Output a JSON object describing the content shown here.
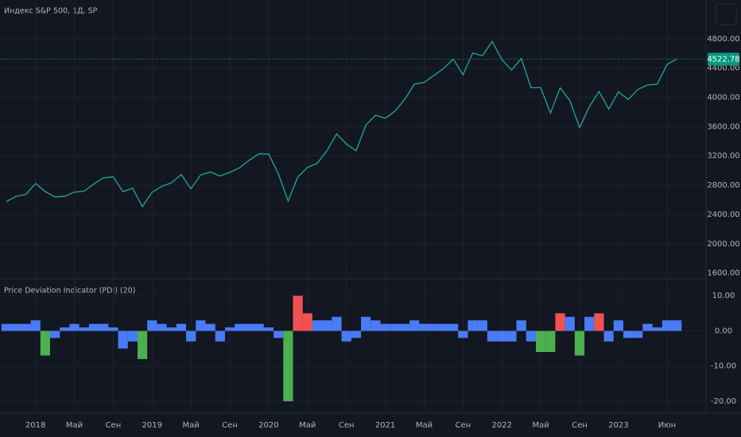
{
  "chart_data": [
    {
      "type": "line",
      "title": "Индекс S&P 500, 1Д, SP",
      "color": "#26a69a",
      "x": [
        "2017-10",
        "2017-11",
        "2017-12",
        "2018-01",
        "2018-02",
        "2018-03",
        "2018-04",
        "2018-05",
        "2018-06",
        "2018-07",
        "2018-08",
        "2018-09",
        "2018-10",
        "2018-11",
        "2018-12",
        "2019-01",
        "2019-02",
        "2019-03",
        "2019-04",
        "2019-05",
        "2019-06",
        "2019-07",
        "2019-08",
        "2019-09",
        "2019-10",
        "2019-11",
        "2019-12",
        "2020-01",
        "2020-02",
        "2020-03",
        "2020-04",
        "2020-05",
        "2020-06",
        "2020-07",
        "2020-08",
        "2020-09",
        "2020-10",
        "2020-11",
        "2020-12",
        "2021-01",
        "2021-02",
        "2021-03",
        "2021-04",
        "2021-05",
        "2021-06",
        "2021-07",
        "2021-08",
        "2021-09",
        "2021-10",
        "2021-11",
        "2021-12",
        "2022-01",
        "2022-02",
        "2022-03",
        "2022-04",
        "2022-05",
        "2022-06",
        "2022-07",
        "2022-08",
        "2022-09",
        "2022-10",
        "2022-11",
        "2022-12",
        "2023-01",
        "2023-02",
        "2023-03",
        "2023-04",
        "2023-05",
        "2023-06",
        "2023-07"
      ],
      "values": [
        2575,
        2647,
        2673,
        2823,
        2713,
        2640,
        2648,
        2705,
        2718,
        2816,
        2901,
        2913,
        2711,
        2760,
        2506,
        2704,
        2784,
        2834,
        2945,
        2752,
        2941,
        2980,
        2926,
        2976,
        3037,
        3141,
        3230,
        3225,
        2954,
        2584,
        2912,
        3044,
        3100,
        3271,
        3500,
        3363,
        3270,
        3622,
        3756,
        3714,
        3811,
        3973,
        4181,
        4204,
        4298,
        4395,
        4523,
        4308,
        4605,
        4567,
        4766,
        4516,
        4374,
        4530,
        4132,
        4132,
        3785,
        4130,
        3955,
        3586,
        3872,
        4080,
        3840,
        4077,
        3970,
        4109,
        4169,
        4180,
        4450,
        4522.78
      ],
      "last_value": 4522.78,
      "last_color": "#089981",
      "ylim": [
        1520,
        5330
      ],
      "yticks": [
        {
          "value": 1600,
          "label": "1600.00"
        },
        {
          "value": 2000,
          "label": "2000.00"
        },
        {
          "value": 2400,
          "label": "2400.00"
        },
        {
          "value": 2800,
          "label": "2800.00"
        },
        {
          "value": 3200,
          "label": "3200.00"
        },
        {
          "value": 3600,
          "label": "3600.00"
        },
        {
          "value": 4000,
          "label": "4000.00"
        },
        {
          "value": 4400,
          "label": "4400.00"
        },
        {
          "value": 4800,
          "label": "4800.00"
        }
      ],
      "grid": true
    },
    {
      "type": "bar",
      "title": "Price Deviation Indicator (PDI) (20)",
      "x": [
        "2017-10",
        "2017-11",
        "2017-12",
        "2018-01",
        "2018-02",
        "2018-03",
        "2018-04",
        "2018-05",
        "2018-06",
        "2018-07",
        "2018-08",
        "2018-09",
        "2018-10",
        "2018-11",
        "2018-12",
        "2019-01",
        "2019-02",
        "2019-03",
        "2019-04",
        "2019-05",
        "2019-06",
        "2019-07",
        "2019-08",
        "2019-09",
        "2019-10",
        "2019-11",
        "2019-12",
        "2020-01",
        "2020-02",
        "2020-03",
        "2020-04",
        "2020-05",
        "2020-06",
        "2020-07",
        "2020-08",
        "2020-09",
        "2020-10",
        "2020-11",
        "2020-12",
        "2021-01",
        "2021-02",
        "2021-03",
        "2021-04",
        "2021-05",
        "2021-06",
        "2021-07",
        "2021-08",
        "2021-09",
        "2021-10",
        "2021-11",
        "2021-12",
        "2022-01",
        "2022-02",
        "2022-03",
        "2022-04",
        "2022-05",
        "2022-06",
        "2022-07",
        "2022-08",
        "2022-09",
        "2022-10",
        "2022-11",
        "2022-12",
        "2023-01",
        "2023-02",
        "2023-03",
        "2023-04",
        "2023-05",
        "2023-06",
        "2023-07"
      ],
      "values": [
        2,
        2,
        2,
        3,
        -7,
        -2,
        1,
        2,
        1,
        2,
        2,
        1,
        -5,
        -3,
        -8,
        3,
        2,
        1,
        2,
        -3,
        3,
        2,
        -3,
        1,
        2,
        2,
        2,
        1,
        -2,
        -20,
        10,
        5,
        3,
        3,
        4,
        -3,
        -2,
        4,
        3,
        2,
        2,
        2,
        3,
        2,
        2,
        2,
        2,
        -2,
        3,
        3,
        -3,
        -3,
        -3,
        3,
        -3,
        -6,
        -6,
        5,
        4,
        -7,
        4,
        5,
        -3,
        3,
        -2,
        -2,
        2,
        1,
        3,
        3
      ],
      "colors": [
        "#4a7bf7",
        "#4a7bf7",
        "#4a7bf7",
        "#4a7bf7",
        "#4caf50",
        "#4a7bf7",
        "#4a7bf7",
        "#4a7bf7",
        "#4a7bf7",
        "#4a7bf7",
        "#4a7bf7",
        "#4a7bf7",
        "#4a7bf7",
        "#4a7bf7",
        "#4caf50",
        "#4a7bf7",
        "#4a7bf7",
        "#4a7bf7",
        "#4a7bf7",
        "#4a7bf7",
        "#4a7bf7",
        "#4a7bf7",
        "#4a7bf7",
        "#4a7bf7",
        "#4a7bf7",
        "#4a7bf7",
        "#4a7bf7",
        "#4a7bf7",
        "#4a7bf7",
        "#4caf50",
        "#f05252",
        "#f05252",
        "#4a7bf7",
        "#4a7bf7",
        "#4a7bf7",
        "#4a7bf7",
        "#4a7bf7",
        "#4a7bf7",
        "#4a7bf7",
        "#4a7bf7",
        "#4a7bf7",
        "#4a7bf7",
        "#4a7bf7",
        "#4a7bf7",
        "#4a7bf7",
        "#4a7bf7",
        "#4a7bf7",
        "#4a7bf7",
        "#4a7bf7",
        "#4a7bf7",
        "#4a7bf7",
        "#4a7bf7",
        "#4a7bf7",
        "#4a7bf7",
        "#4a7bf7",
        "#4caf50",
        "#4caf50",
        "#f05252",
        "#4a7bf7",
        "#4caf50",
        "#4a7bf7",
        "#f05252",
        "#4a7bf7",
        "#4a7bf7",
        "#4a7bf7",
        "#4a7bf7",
        "#4a7bf7",
        "#4a7bf7",
        "#4a7bf7",
        "#4a7bf7"
      ],
      "ylim": [
        -23.4,
        14.8
      ],
      "yticks": [
        {
          "value": 10,
          "label": "10.00"
        },
        {
          "value": 0,
          "label": "0.00"
        },
        {
          "value": -10,
          "label": "-10.00"
        },
        {
          "value": -20,
          "label": "-20.00"
        }
      ],
      "xticks": [
        {
          "value": "2018-01",
          "label": "2018"
        },
        {
          "value": "2018-05",
          "label": "Май"
        },
        {
          "value": "2018-09",
          "label": "Сен"
        },
        {
          "value": "2019-01",
          "label": "2019"
        },
        {
          "value": "2019-05",
          "label": "Май"
        },
        {
          "value": "2019-09",
          "label": "Сен"
        },
        {
          "value": "2020-01",
          "label": "2020"
        },
        {
          "value": "2020-05",
          "label": "Май"
        },
        {
          "value": "2020-09",
          "label": "Сен"
        },
        {
          "value": "2021-01",
          "label": "2021"
        },
        {
          "value": "2021-05",
          "label": "Май"
        },
        {
          "value": "2021-09",
          "label": "Сен"
        },
        {
          "value": "2022-01",
          "label": "2022"
        },
        {
          "value": "2022-05",
          "label": "Май"
        },
        {
          "value": "2022-09",
          "label": "Сен"
        },
        {
          "value": "2023-01",
          "label": "2023"
        },
        {
          "value": "2023-06",
          "label": "Июн"
        }
      ],
      "grid": true
    }
  ]
}
